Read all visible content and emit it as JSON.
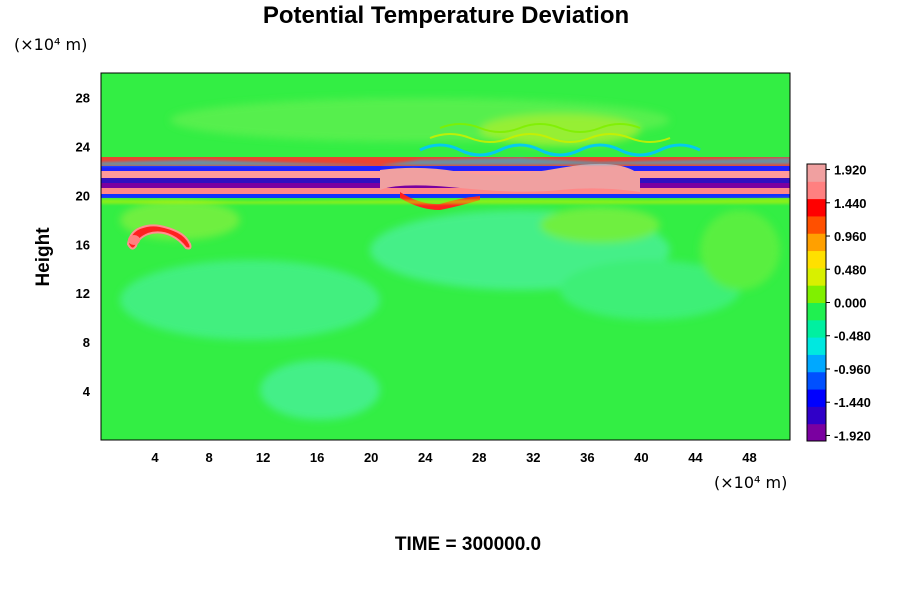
{
  "chart_data": {
    "type": "heatmap",
    "title": "Potential Temperature Deviation",
    "ylabel": "Height",
    "y_unit": "(×10⁴ m)",
    "x_unit": "(×10⁴ m)",
    "footer": "TIME = 300000.0",
    "xlim": [
      0,
      51
    ],
    "ylim": [
      0,
      30
    ],
    "x_ticks": [
      "4",
      "8",
      "12",
      "16",
      "20",
      "24",
      "28",
      "32",
      "36",
      "40",
      "44",
      "48"
    ],
    "x_tick_values": [
      4,
      8,
      12,
      16,
      20,
      24,
      28,
      32,
      36,
      40,
      44,
      48
    ],
    "y_ticks": [
      "4",
      "8",
      "12",
      "16",
      "20",
      "24",
      "28"
    ],
    "y_tick_values": [
      4,
      8,
      12,
      16,
      20,
      24,
      28
    ],
    "colorbar": {
      "min": -2.0,
      "max": 2.0,
      "labels": [
        "1.920",
        "1.440",
        "0.960",
        "0.480",
        "0.000",
        "-0.480",
        "-0.960",
        "-1.440",
        "-1.920"
      ],
      "label_values": [
        1.92,
        1.44,
        0.96,
        0.48,
        0.0,
        -0.48,
        -0.96,
        -1.44,
        -1.92
      ],
      "colors_low_to_high": [
        "#7a00a0",
        "#3000c8",
        "#0000ff",
        "#0050ff",
        "#00a8ff",
        "#00e8e0",
        "#00f0a0",
        "#20f050",
        "#80f000",
        "#d8f000",
        "#ffe000",
        "#ffa000",
        "#ff5000",
        "#ff0000",
        "#ff8080",
        "#f0a0a0"
      ]
    },
    "background_color": "#33ee44",
    "features": [
      {
        "name": "upper band",
        "kind": "band",
        "y_center": 21,
        "value": 1.9
      },
      {
        "name": "thermal blob",
        "kind": "blob",
        "x": 5,
        "y": 16.3,
        "value": 1.6
      }
    ]
  }
}
